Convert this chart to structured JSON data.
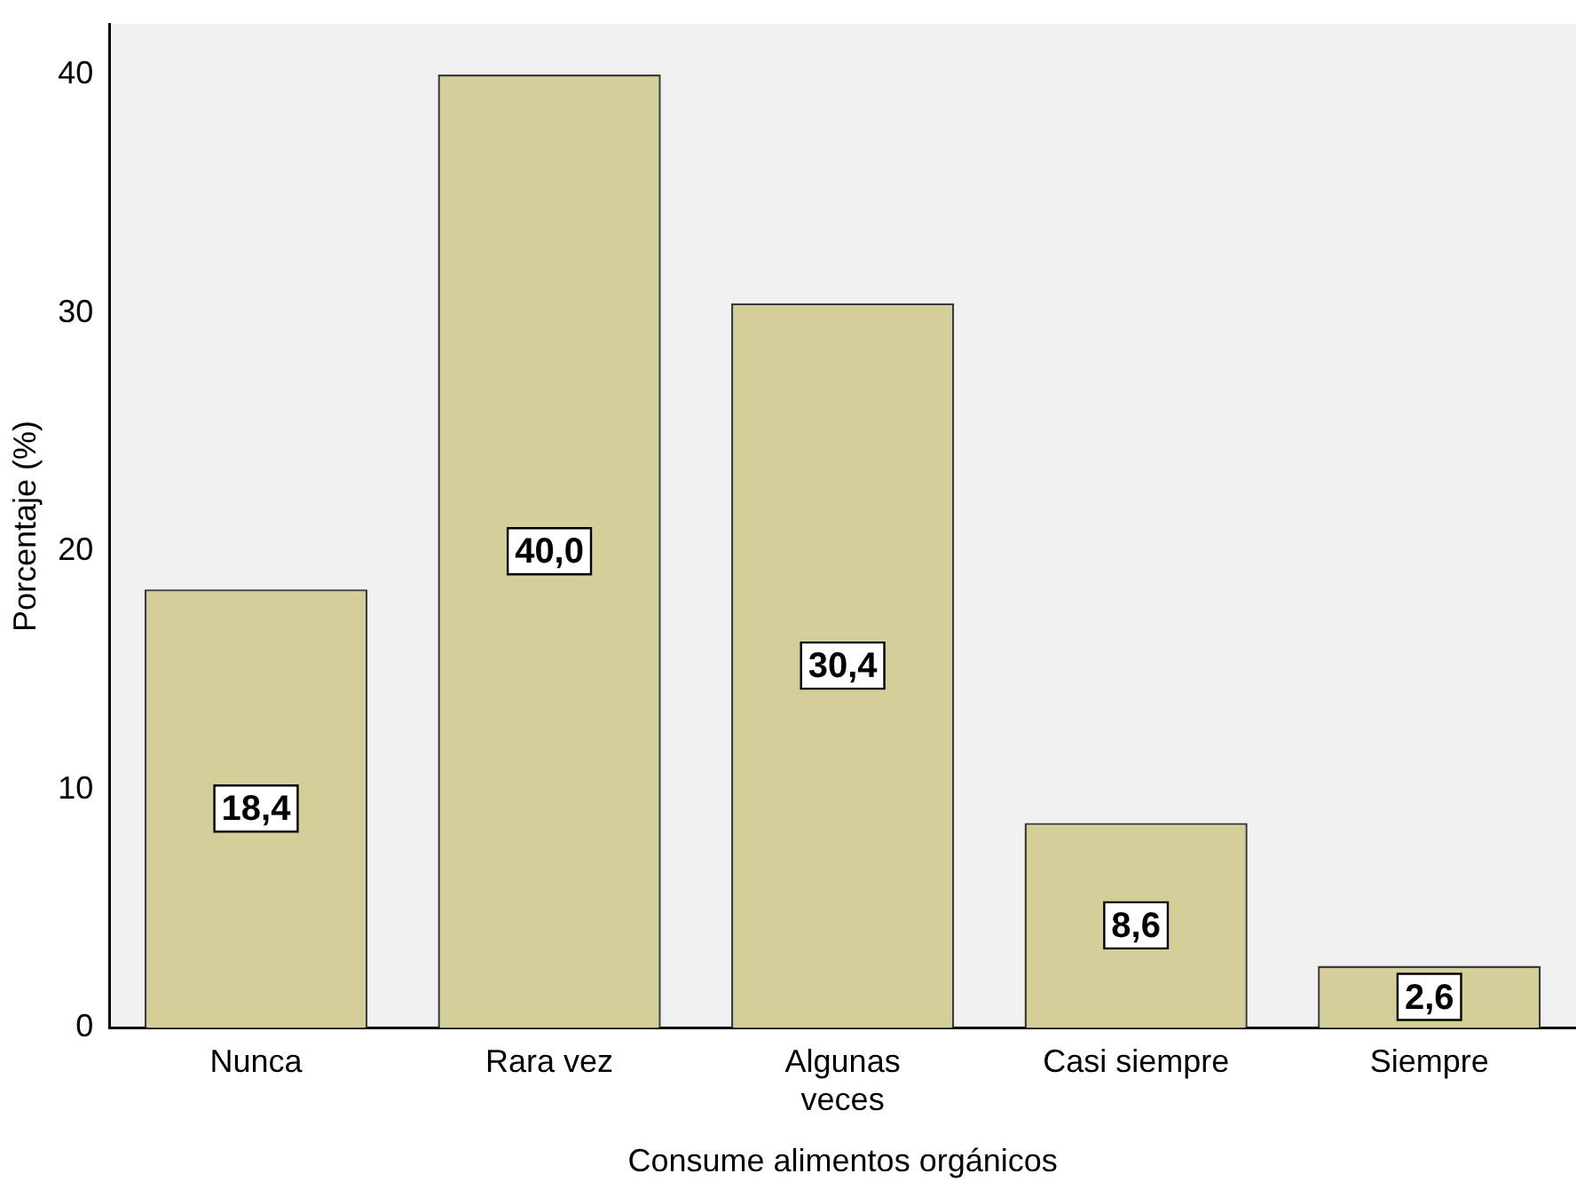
{
  "chart_data": {
    "type": "bar",
    "xlabel": "Consume alimentos orgánicos",
    "ylabel": "Porcentaje (%)",
    "categories": [
      "Nunca",
      "Rara vez",
      "Algunas\nveces",
      "Casi siempre",
      "Siempre"
    ],
    "values": [
      18.4,
      40.0,
      30.4,
      8.6,
      2.6
    ],
    "value_labels": [
      "18,4",
      "40,0",
      "30,4",
      "8,6",
      "2,6"
    ],
    "color": "#d4cf98",
    "ylim": [
      0,
      42.1
    ],
    "yticks": [
      0,
      10,
      20,
      30,
      40
    ],
    "grid": false,
    "legend": false
  }
}
